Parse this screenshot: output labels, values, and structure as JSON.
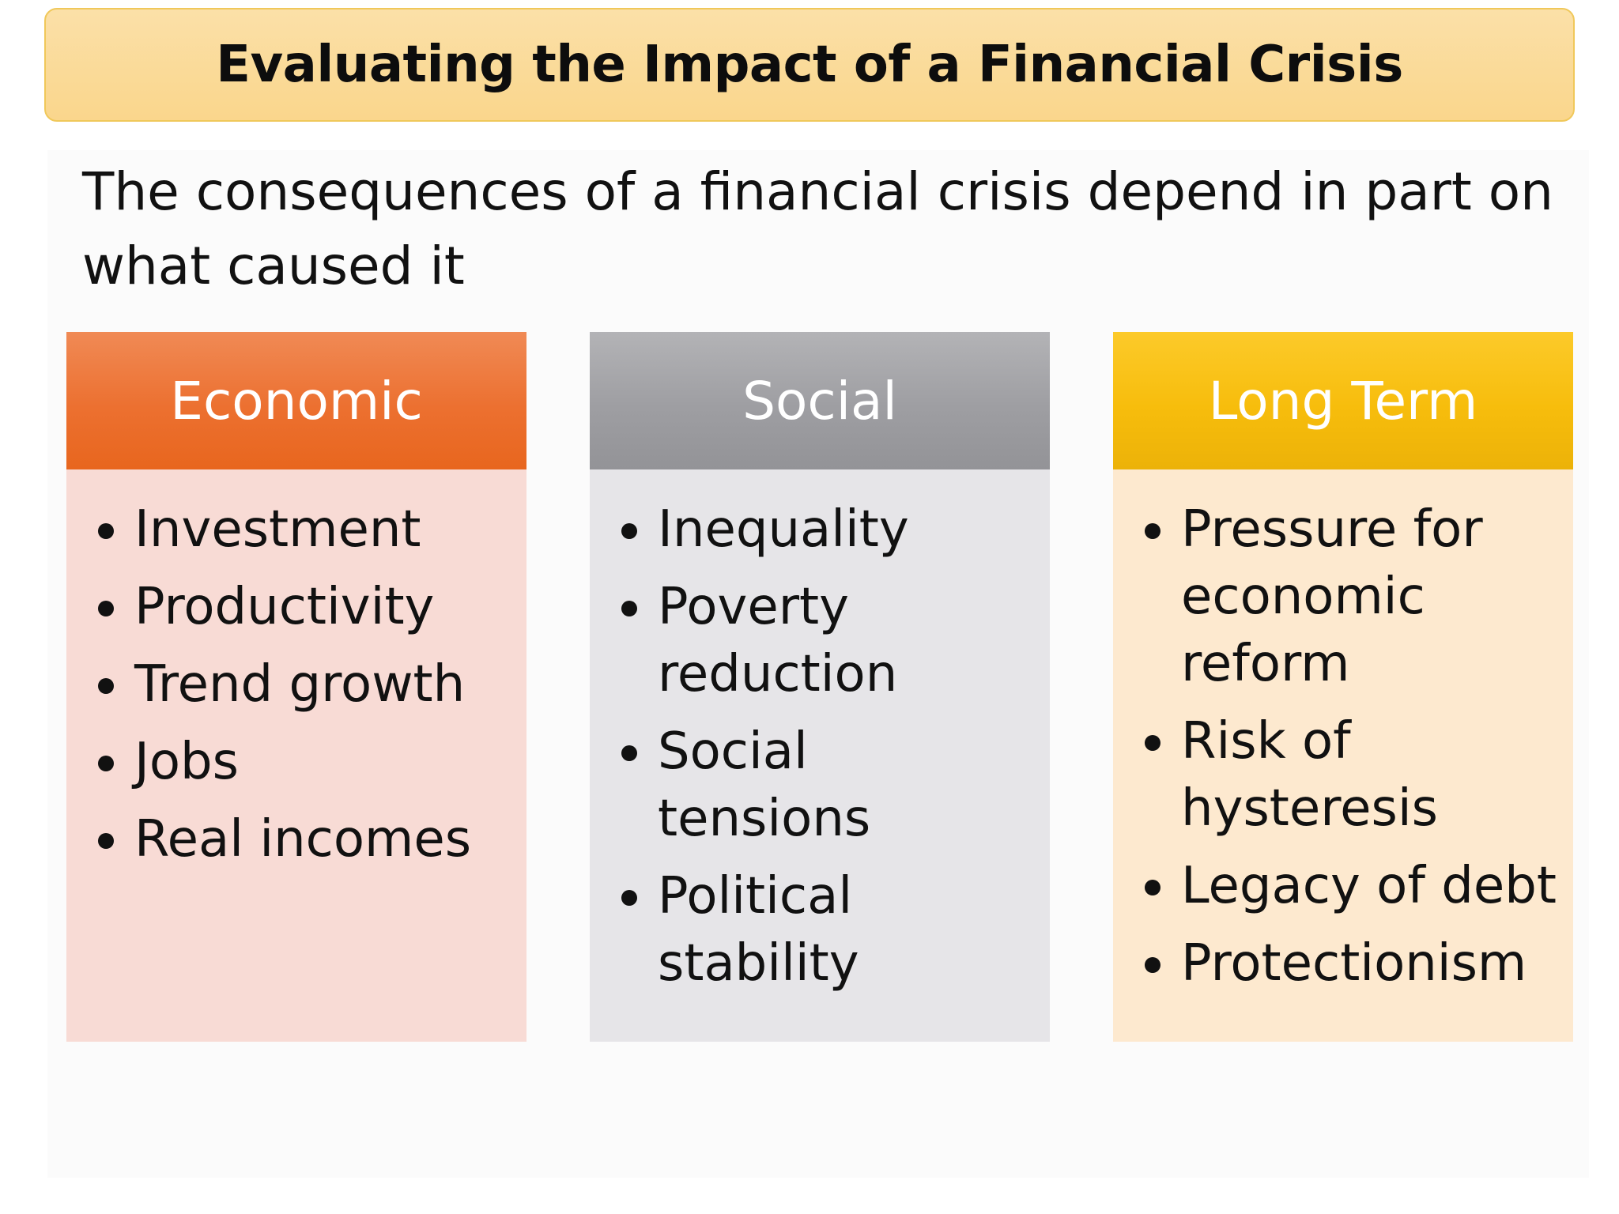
{
  "title": "Evaluating the Impact of a Financial Crisis",
  "intro": "The consequences of a financial crisis depend in part on what caused it",
  "columns": [
    {
      "heading": "Economic",
      "color": "#ec7030",
      "items": [
        "Investment",
        "Productivity",
        "Trend growth",
        "Jobs",
        "Real incomes"
      ]
    },
    {
      "heading": "Social",
      "color": "#a0a0a4",
      "items": [
        "Inequality",
        "Poverty reduction",
        "Social tensions",
        "Political stability"
      ]
    },
    {
      "heading": "Long Term",
      "color": "#f7bd0c",
      "items": [
        "Pressure for economic reform",
        "Risk of hysteresis",
        "Legacy of debt",
        "Protectionism"
      ]
    }
  ]
}
